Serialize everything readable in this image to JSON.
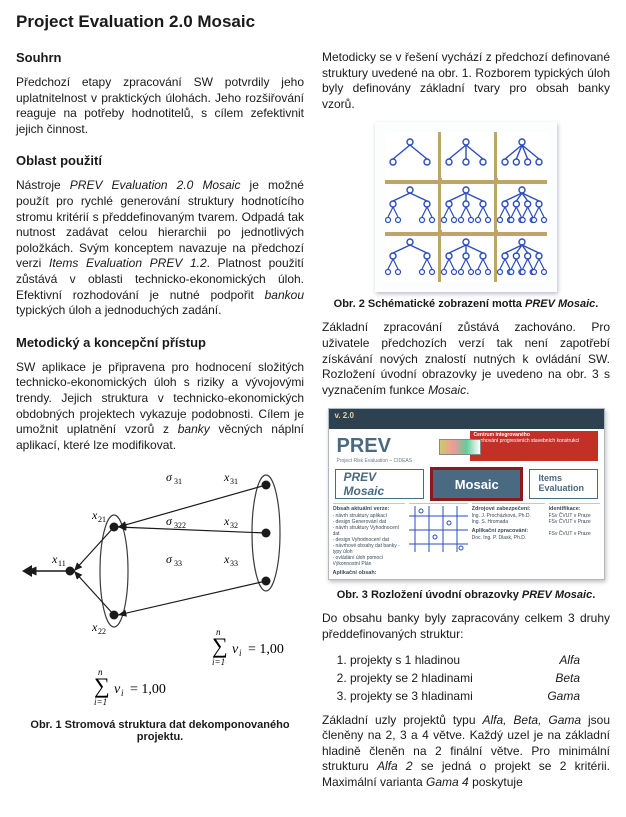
{
  "doc": {
    "title": "Project Evaluation 2.0 Mosaic",
    "left": {
      "h1": "Souhrn",
      "p1": "Předchozí etapy zpracování SW potvrdily jeho uplatnitelnost v praktických úlohách. Jeho rozšiřování reaguje na potřeby hodnotitelů, s cílem zefektivnit jejich činnost.",
      "h2": "Oblast použití",
      "p2a": "Nástroje ",
      "p2b": "PREV Evaluation 2.0 Mosaic",
      "p2c": " je možné použít pro rychlé generování struktury hodnotícího stromu kritérií s předdefinovaným tvarem. Odpadá tak nutnost zadávat celou hierarchii po jednotlivých položkách. Svým konceptem navazuje na předchozí verzi ",
      "p2d": "Items Evaluation PREV 1.2",
      "p2e": ". Platnost použití zůstává v oblasti technicko-ekonomických úloh. Efektivní rozhodování je nutné podpořit ",
      "p2f": "bankou",
      "p2g": " typických úloh a jednoduchých zadání.",
      "h3": "Metodický a koncepční přístup",
      "p3a": "SW aplikace je připravena pro hodnocení složitých technicko-ekonomických úloh s riziky a vývojovými trendy. Jejich struktura v technicko-ekonomických obdobných projektech vykazuje podobnosti. Cílem je umožnit uplatnění vzorů z ",
      "p3b": "banky",
      "p3c": " věcných náplní aplikací, které lze modifikovat.",
      "tree": {
        "nodes": {
          "x11": {
            "label": "x",
            "sub": "11"
          },
          "x21": {
            "label": "x",
            "sub": "21"
          },
          "x22": {
            "label": "x",
            "sub": "22"
          },
          "x31": {
            "label": "x",
            "sub": "31"
          },
          "x32": {
            "label": "x",
            "sub": "32"
          },
          "x33": {
            "label": "x",
            "sub": "33"
          },
          "s31": {
            "label": "σ",
            "sub": "31"
          },
          "s322": {
            "label": "σ",
            "sub": "322"
          },
          "s33": {
            "label": "σ",
            "sub": "33"
          }
        },
        "ellipse_color": "#3a3a3a",
        "arrow_color": "#1a1a1a",
        "formula1": "∑ vᵢ = 1,00",
        "formula2": "∑ vᵢ = 1,00",
        "sum_upper": "n",
        "sum_lower": "i=1"
      },
      "fig1_caption_a": "Obr. 1 Stromová struktura dat dekomponovaného projektu."
    },
    "right": {
      "p1": "Metodicky se v řešení vychází z předchozí definované struktury uvedené na obr. 1. Rozborem typických úloh byly definovány základní tvary pro obsah banky vzorů.",
      "fig2_caption": "Obr. 2 Schématické zobrazení motta ",
      "fig2_caption_it": "PREV Mosaic",
      "p2": "Základní zpracování zůstává zachováno. Pro uživatele předchozích verzí tak není zapotřebí získávání nových znalostí nutných k ovládání SW. Rozložení úvodní obrazovky je uvedeno na obr. 3 s vyznačením funkce ",
      "p2_it": "Mosaic",
      "p2_end": ".",
      "prev_mosaic": {
        "topbar": "v. 2.0",
        "red_line1": "Centrum integrovaného",
        "red_line2": "navrhování progresivních stavebních konstrukcí",
        "logo": "PREV",
        "logo_sub": "Project Risk Evaluation – CIDEAS",
        "btn1": "PREV Mosaic",
        "btn2": "Mosaic",
        "btn3": "Items Evaluation",
        "lower": {
          "c1_t": "Obsah aktuální verze:",
          "c1_b": "- návrh struktury aplikací\n- design Generování dat\n- návrh struktury Vyhodnocení dat\n- design Vyhodnocení dat\n- návrhové obsahy dat banky - typy úloh\n- ovládání úloh pomocí Výkonnostní Plán",
          "c2_t": "Zdrojové zabezpečení:",
          "c2_b": "Ing. J. Procházková, Ph.D.\nIng. S. Hromada",
          "c2_t2": "Aplikační zpracování:",
          "c2_b2": "Doc. Ing. P. Dlask, Ph.D.",
          "c3_t": "Identifikace:",
          "c3_b": "FSv ČVUT v Praze\nFSv ČVUT v Praze\n\nFSv ČVUT v Praze",
          "c4_t": "Aplikační obsah:"
        }
      },
      "fig3_caption": "Obr. 3 Rozložení úvodní obrazovky ",
      "fig3_caption_it": "PREV Mosaic",
      "p3": "Do obsahu banky byly zapracovány celkem 3 druhy předdefinovaných struktur:",
      "list": [
        {
          "txt": "projekty s 1 hladinou",
          "name": "Alfa"
        },
        {
          "txt": "projekty se 2 hladinami",
          "name": "Beta"
        },
        {
          "txt": "projekty se 3 hladinami",
          "name": "Gama"
        }
      ],
      "p4a": "Základní uzly projektů typu ",
      "p4b": "Alfa, Beta, Gama",
      "p4c": " jsou členěny na 2, 3 a 4 větve. Každý uzel je na základní hladině členěn na 2 finální větve. Pro minimální strukturu ",
      "p4d": "Alfa 2",
      "p4e": " se jedná o projekt se 2 kritérii. Maximální varianta ",
      "p4f": "Gama 4",
      "p4g": " poskytuje"
    },
    "grid_fig": {
      "line_color": "#bfa468",
      "node_border": "#2a4cbf",
      "radius": 3
    }
  }
}
